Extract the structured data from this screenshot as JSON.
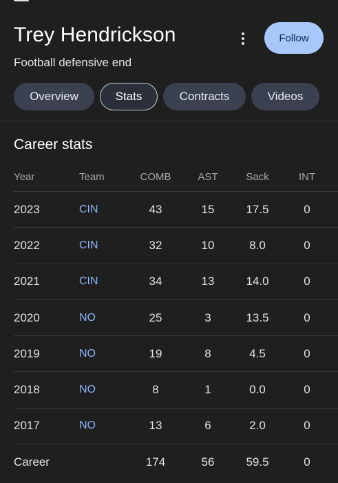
{
  "player": {
    "name": "Trey Hendrickson",
    "subtitle": "Football defensive end",
    "follow_label": "Follow"
  },
  "tabs": [
    {
      "label": "Overview",
      "active": false
    },
    {
      "label": "Stats",
      "active": true
    },
    {
      "label": "Contracts",
      "active": false
    },
    {
      "label": "Videos",
      "active": false
    }
  ],
  "stats": {
    "title": "Career stats",
    "columns": [
      "Year",
      "Team",
      "COMB",
      "AST",
      "Sack",
      "INT"
    ],
    "rows": [
      {
        "year": "2023",
        "team": "CIN",
        "comb": "43",
        "ast": "15",
        "sack": "17.5",
        "int": "0"
      },
      {
        "year": "2022",
        "team": "CIN",
        "comb": "32",
        "ast": "10",
        "sack": "8.0",
        "int": "0"
      },
      {
        "year": "2021",
        "team": "CIN",
        "comb": "34",
        "ast": "13",
        "sack": "14.0",
        "int": "0"
      },
      {
        "year": "2020",
        "team": "NO",
        "comb": "25",
        "ast": "3",
        "sack": "13.5",
        "int": "0"
      },
      {
        "year": "2019",
        "team": "NO",
        "comb": "19",
        "ast": "8",
        "sack": "4.5",
        "int": "0"
      },
      {
        "year": "2018",
        "team": "NO",
        "comb": "8",
        "ast": "1",
        "sack": "0.0",
        "int": "0"
      },
      {
        "year": "2017",
        "team": "NO",
        "comb": "13",
        "ast": "6",
        "sack": "2.0",
        "int": "0"
      }
    ],
    "career": {
      "year": "Career",
      "team": "",
      "comb": "174",
      "ast": "56",
      "sack": "59.5",
      "int": "0"
    }
  },
  "colors": {
    "background": "#1f1f1f",
    "accent": "#a8c7fa",
    "link": "#8ab4f8"
  }
}
